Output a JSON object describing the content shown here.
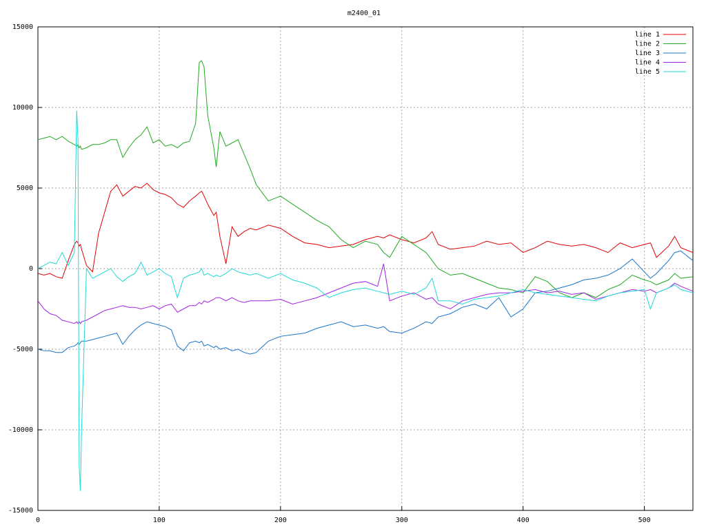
{
  "chart_data": {
    "type": "line",
    "title": "m2400_01",
    "x": [
      0,
      5,
      10,
      15,
      20,
      25,
      30,
      32,
      33,
      34,
      35,
      36,
      40,
      45,
      50,
      55,
      60,
      65,
      70,
      75,
      80,
      85,
      90,
      95,
      100,
      105,
      110,
      115,
      120,
      125,
      130,
      133,
      135,
      137,
      140,
      145,
      147,
      150,
      155,
      160,
      165,
      170,
      175,
      180,
      190,
      200,
      210,
      220,
      230,
      240,
      250,
      260,
      270,
      280,
      285,
      290,
      300,
      310,
      320,
      325,
      330,
      340,
      350,
      360,
      370,
      380,
      390,
      400,
      410,
      420,
      430,
      440,
      450,
      460,
      470,
      480,
      490,
      500,
      505,
      510,
      520,
      525,
      530,
      540
    ],
    "series": [
      {
        "name": "line 1",
        "color": "#e00000",
        "values": [
          -300,
          -400,
          -300,
          -500,
          -600,
          500,
          1500,
          1700,
          1600,
          1400,
          1500,
          1200,
          200,
          -200,
          2200,
          3500,
          4800,
          5200,
          4500,
          4800,
          5100,
          5000,
          5300,
          4900,
          4700,
          4600,
          4400,
          4000,
          3800,
          4200,
          4500,
          4700,
          4800,
          4500,
          4000,
          3300,
          3500,
          2000,
          300,
          2600,
          2000,
          2300,
          2500,
          2400,
          2700,
          2500,
          2000,
          1600,
          1500,
          1300,
          1400,
          1500,
          1800,
          2000,
          1900,
          2100,
          1800,
          1600,
          1900,
          2300,
          1500,
          1200,
          1300,
          1400,
          1700,
          1500,
          1600,
          1000,
          1300,
          1700,
          1500,
          1400,
          1500,
          1300,
          1000,
          1600,
          1300,
          1500,
          1600,
          700,
          1400,
          2000,
          1300,
          1000
        ]
      },
      {
        "name": "line 2",
        "color": "#20a820",
        "values": [
          8000,
          8100,
          8200,
          8000,
          8200,
          7900,
          7700,
          7600,
          7700,
          7500,
          7600,
          7400,
          7500,
          7700,
          7700,
          7800,
          8000,
          8000,
          6900,
          7500,
          8000,
          8300,
          8800,
          7800,
          8000,
          7600,
          7700,
          7500,
          7800,
          7900,
          9000,
          12800,
          12900,
          12500,
          9500,
          7500,
          6300,
          8500,
          7600,
          7800,
          8000,
          7100,
          6200,
          5200,
          4200,
          4500,
          4000,
          3500,
          3000,
          2600,
          1800,
          1300,
          1700,
          1500,
          1000,
          700,
          2000,
          1500,
          1000,
          500,
          0,
          -400,
          -300,
          -600,
          -900,
          -1200,
          -1300,
          -1500,
          -500,
          -800,
          -1500,
          -1800,
          -1500,
          -1800,
          -1300,
          -1000,
          -400,
          -700,
          -800,
          -1000,
          -700,
          -300,
          -600,
          -500
        ]
      },
      {
        "name": "line 3",
        "color": "#1874c8",
        "values": [
          -5000,
          -5100,
          -5100,
          -5200,
          -5200,
          -4900,
          -4800,
          -4700,
          -4600,
          -4700,
          -4600,
          -4500,
          -4500,
          -4400,
          -4300,
          -4200,
          -4100,
          -4000,
          -4700,
          -4200,
          -3800,
          -3500,
          -3300,
          -3400,
          -3500,
          -3600,
          -3800,
          -4800,
          -5100,
          -4600,
          -4500,
          -4600,
          -4500,
          -4800,
          -4700,
          -4900,
          -4800,
          -5000,
          -4900,
          -5100,
          -5000,
          -5200,
          -5300,
          -5200,
          -4500,
          -4200,
          -4100,
          -4000,
          -3700,
          -3500,
          -3300,
          -3600,
          -3500,
          -3700,
          -3600,
          -3900,
          -4000,
          -3700,
          -3300,
          -3400,
          -3000,
          -2800,
          -2400,
          -2200,
          -2500,
          -1800,
          -3000,
          -2500,
          -1500,
          -1400,
          -1200,
          -1000,
          -700,
          -600,
          -400,
          0,
          600,
          -200,
          -600,
          -300,
          500,
          1000,
          1100,
          500
        ]
      },
      {
        "name": "line 4",
        "color": "#a020e0",
        "values": [
          -2000,
          -2500,
          -2800,
          -2900,
          -3200,
          -3300,
          -3400,
          -3300,
          -3400,
          -3300,
          -3400,
          -3300,
          -3200,
          -3000,
          -2800,
          -2600,
          -2500,
          -2400,
          -2300,
          -2400,
          -2400,
          -2500,
          -2400,
          -2300,
          -2500,
          -2300,
          -2200,
          -2700,
          -2500,
          -2300,
          -2300,
          -2100,
          -2200,
          -2000,
          -2100,
          -1900,
          -1800,
          -1800,
          -2000,
          -1800,
          -2000,
          -2100,
          -2000,
          -2000,
          -2000,
          -1900,
          -2200,
          -2000,
          -1800,
          -1500,
          -1200,
          -900,
          -800,
          -1100,
          300,
          -2000,
          -1700,
          -1500,
          -1900,
          -1800,
          -2200,
          -2500,
          -2000,
          -1800,
          -1600,
          -1500,
          -1500,
          -1400,
          -1300,
          -1500,
          -1400,
          -1600,
          -1500,
          -1900,
          -1700,
          -1500,
          -1300,
          -1400,
          -1300,
          -1500,
          -1200,
          -900,
          -1100,
          -1400
        ]
      },
      {
        "name": "line 5",
        "color": "#20d8d8",
        "values": [
          0,
          200,
          400,
          300,
          1000,
          200,
          1000,
          9800,
          8000,
          -12200,
          -13800,
          -10000,
          0,
          -600,
          -400,
          -200,
          0,
          -500,
          -800,
          -500,
          -300,
          400,
          -400,
          -200,
          0,
          -300,
          -500,
          -1800,
          -600,
          -400,
          -300,
          -200,
          0,
          -400,
          -300,
          -500,
          -400,
          -500,
          -300,
          0,
          -200,
          -300,
          -400,
          -300,
          -600,
          -300,
          -700,
          -900,
          -1200,
          -1800,
          -1500,
          -1300,
          -1200,
          -1400,
          -1500,
          -1600,
          -1400,
          -1600,
          -1200,
          -600,
          -2000,
          -2000,
          -2200,
          -1900,
          -1800,
          -1700,
          -1500,
          -1300,
          -1500,
          -1600,
          -1700,
          -1800,
          -1900,
          -2000,
          -1700,
          -1500,
          -1400,
          -1300,
          -2500,
          -1500,
          -1200,
          -1000,
          -1300,
          -1500
        ]
      }
    ],
    "xlim": [
      0,
      540
    ],
    "xticks": [
      0,
      100,
      200,
      300,
      400,
      500
    ],
    "ylim": [
      -15000,
      15000
    ],
    "yticks": [
      -15000,
      -10000,
      -5000,
      0,
      5000,
      10000,
      15000
    ],
    "grid": true,
    "legend": "top-right"
  }
}
